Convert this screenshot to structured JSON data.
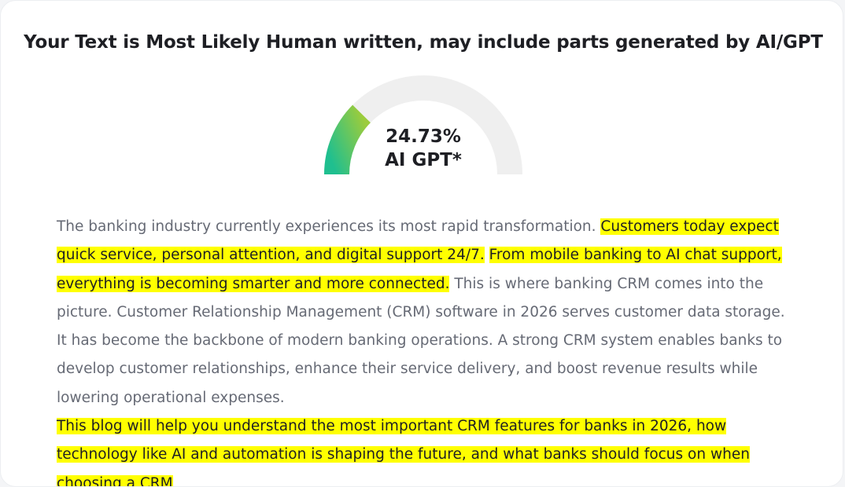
{
  "result": {
    "headline": "Your Text is Most Likely Human written, may include parts generated by AI/GPT",
    "percent_text": "24.73%",
    "percent_value": 24.73,
    "label": "AI GPT*"
  },
  "colors": {
    "gauge_track": "#efefef",
    "gauge_fill_start": "#1fbf8f",
    "gauge_fill_end": "#9ccc3c",
    "highlight": "#ffff00",
    "normal_text": "#666a75",
    "highlighted_text": "#1e1f24"
  },
  "paragraphs": [
    {
      "segments": [
        {
          "text": "The banking industry currently experiences its most rapid transformation. ",
          "ai": false
        },
        {
          "text": "Customers today expect quick service, personal attention, and digital support 24/7.",
          "ai": true
        },
        {
          "text": " ",
          "ai": false
        },
        {
          "text": "From mobile banking to AI chat support, everything is becoming smarter and more connected.",
          "ai": true
        },
        {
          "text": " This is where banking CRM comes into the picture. Customer Relationship Management (CRM) software in 2026 serves customer data storage. It has become the backbone of modern banking operations. A strong CRM system enables banks to develop customer relationships, enhance their service delivery, and boost revenue results while lowering operational expenses.",
          "ai": false
        }
      ]
    },
    {
      "segments": [
        {
          "text": "This blog will help you understand the most important CRM features for banks in 2026, how technology like AI and automation is shaping the future, and what banks should focus on when choosing a CRM",
          "ai": true
        }
      ]
    }
  ]
}
